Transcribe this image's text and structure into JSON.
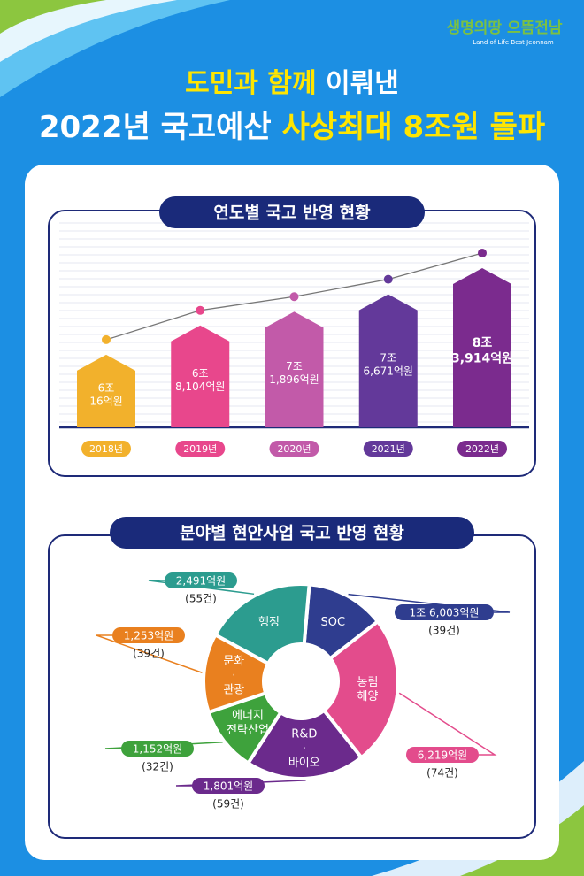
{
  "header": {
    "logo": "생명의땅 으뜸전남",
    "logo_sub": "Land of Life Best Jeonnam",
    "title_1a": "도민과 함께",
    "title_1b": "이뤄낸",
    "title_2a": "2022년 국고예산",
    "title_2b": "사상최대 8조원 돌파"
  },
  "chart_data": [
    {
      "type": "bar",
      "title": "연도별 국고 반영 현황",
      "categories": [
        "2018년",
        "2019년",
        "2020년",
        "2021년",
        "2022년"
      ],
      "values": [
        60016,
        68104,
        71896,
        76671,
        83914
      ],
      "value_labels": [
        [
          "6조",
          "16억원"
        ],
        [
          "6조",
          "8,104억원"
        ],
        [
          "7조",
          "1,896억원"
        ],
        [
          "7조",
          "6,671억원"
        ],
        [
          "8조",
          "3,914억원"
        ]
      ],
      "colors": [
        "#f2b12c",
        "#e8478c",
        "#c25aa9",
        "#63399a",
        "#7b2b8e"
      ],
      "ylim": [
        40000,
        90000
      ]
    },
    {
      "type": "donut",
      "title": "분야별 현안사업 국고 반영 현황",
      "categories": [
        [
          "SOC"
        ],
        [
          "농림",
          "해양"
        ],
        [
          "R&D",
          "·",
          "바이오"
        ],
        [
          "에너지",
          "전략산업"
        ],
        [
          "문화",
          "·",
          "관광"
        ],
        [
          "행정"
        ]
      ],
      "values": [
        39,
        74,
        59,
        32,
        39,
        55
      ],
      "value_labels": [
        "(39건)",
        "(74건)",
        "(59건)",
        "(32건)",
        "(39건)",
        "(55건)"
      ],
      "amounts": [
        16003,
        6219,
        1801,
        1152,
        1253,
        2491
      ],
      "amount_labels": [
        "1조 6,003억원",
        "6,219억원",
        "1,801억원",
        "1,152억원",
        "1,253억원",
        "2,491억원"
      ],
      "colors": [
        "#2f3d8f",
        "#e34c8c",
        "#6b2a8c",
        "#3ea23c",
        "#e9801f",
        "#2c9c8f"
      ]
    }
  ]
}
